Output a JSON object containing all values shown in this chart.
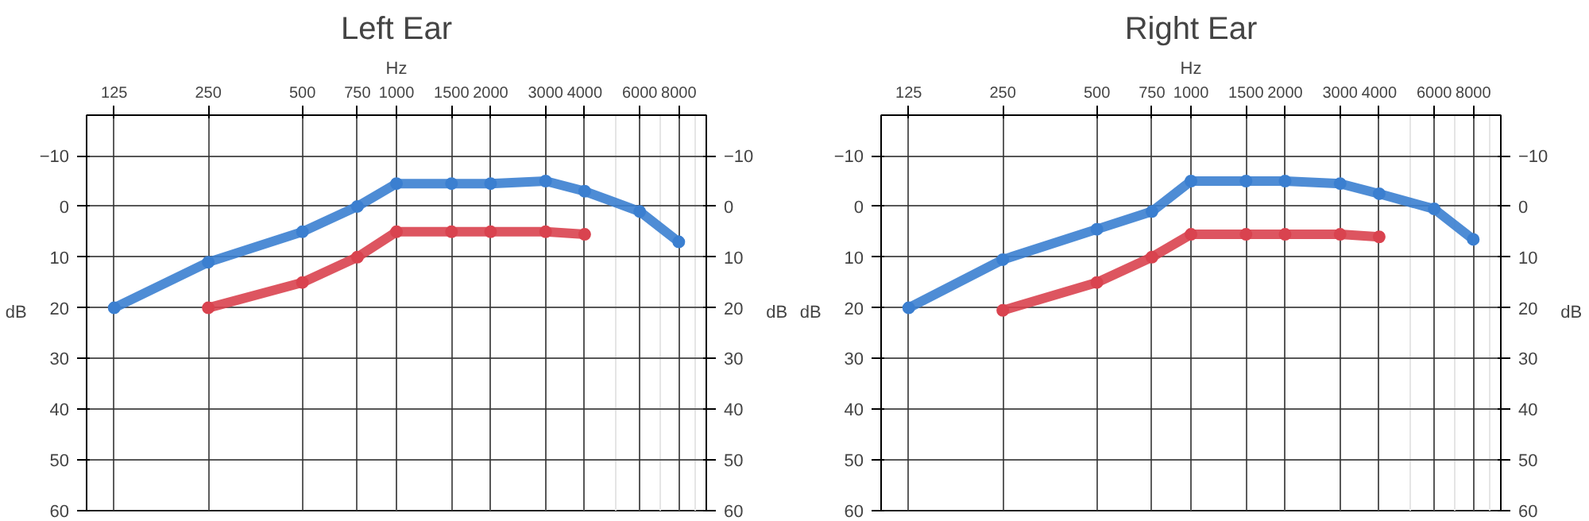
{
  "chart_data": [
    {
      "type": "line",
      "title": "Left Ear",
      "xlabel": "Hz",
      "ylabel": "dB",
      "y2label": "dB",
      "x": [
        125,
        250,
        500,
        750,
        1000,
        1500,
        2000,
        3000,
        4000,
        6000,
        8000
      ],
      "series": [
        {
          "color": "#3b7fd0",
          "values": [
            20,
            11,
            5,
            0,
            -4.5,
            -4.5,
            -4.5,
            -5,
            -3,
            1,
            7
          ]
        },
        {
          "color": "#d9434f",
          "values": [
            null,
            20,
            15,
            10,
            5,
            5,
            5,
            5,
            5.5,
            null,
            null
          ]
        }
      ],
      "xlim": [
        102,
        9800
      ],
      "xticks": [
        125,
        250,
        500,
        750,
        1000,
        1500,
        2000,
        3000,
        4000,
        6000,
        8000
      ],
      "ylim": [
        60,
        -18
      ],
      "yticks": [
        -10,
        0,
        10,
        20,
        30,
        40,
        50,
        60
      ],
      "y2lim": [
        60,
        -18
      ],
      "y2ticks": [
        -10,
        0,
        10,
        20,
        30,
        40,
        50,
        60
      ],
      "log": "x",
      "grid": true,
      "marker": "circle",
      "line_style": "solid"
    },
    {
      "type": "line",
      "title": "Right Ear",
      "xlabel": "Hz",
      "ylabel": "dB",
      "y2label": "dB",
      "x": [
        125,
        250,
        500,
        750,
        1000,
        1500,
        2000,
        3000,
        4000,
        6000,
        8000
      ],
      "series": [
        {
          "color": "#3b7fd0",
          "values": [
            20,
            10.5,
            4.5,
            1,
            -5,
            -5,
            -5,
            -4.5,
            -2.5,
            0.5,
            6.5
          ]
        },
        {
          "color": "#d9434f",
          "values": [
            null,
            20.5,
            15,
            10,
            5.5,
            5.5,
            5.5,
            5.5,
            6,
            null,
            null
          ]
        }
      ],
      "xlim": [
        102,
        9800
      ],
      "xticks": [
        125,
        250,
        500,
        750,
        1000,
        1500,
        2000,
        3000,
        4000,
        6000,
        8000
      ],
      "ylim": [
        60,
        -18
      ],
      "yticks": [
        -10,
        0,
        10,
        20,
        30,
        40,
        50,
        60
      ],
      "y2lim": [
        60,
        -18
      ],
      "y2ticks": [
        -10,
        0,
        10,
        20,
        30,
        40,
        50,
        60
      ],
      "log": "x",
      "grid": true,
      "marker": "circle",
      "line_style": "solid"
    }
  ]
}
